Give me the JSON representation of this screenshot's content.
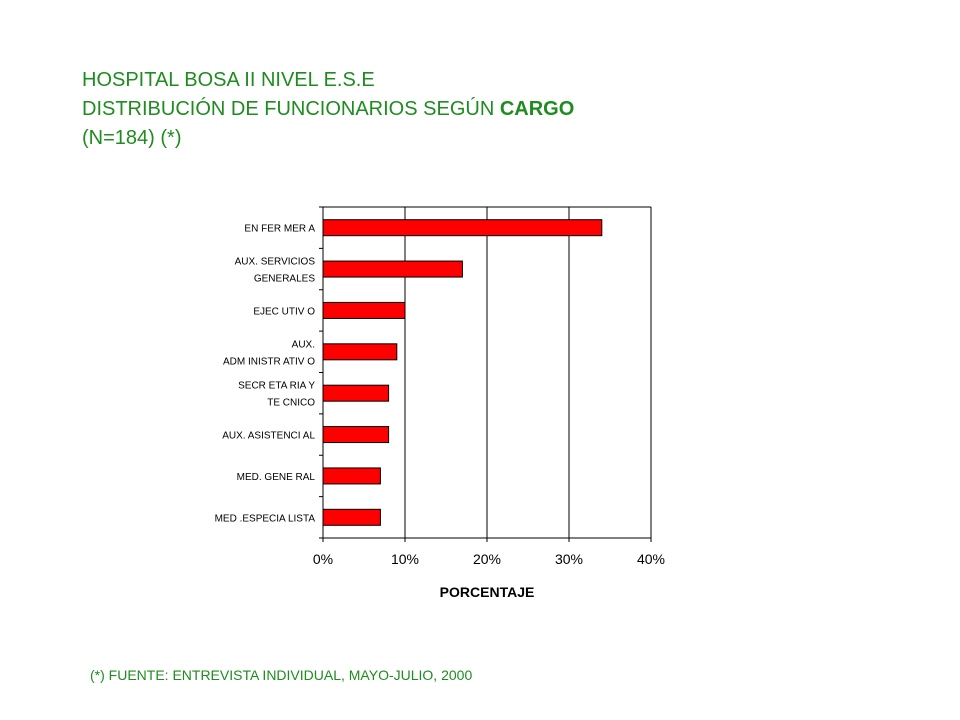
{
  "header": {
    "line1": "HOSPITAL BOSA II NIVEL E.S.E",
    "line2_prefix": "DISTRIBUCIÓN DE FUNCIONARIOS SEGÚN ",
    "line2_bold": "CARGO",
    "line3": "(N=184) (*)"
  },
  "footnote": "(*) FUENTE: ENTREVISTA INDIVIDUAL, MAYO-JULIO, 2000",
  "colors": {
    "title": "#1e8c1e",
    "bar": "#ff0000",
    "bar_border": "#000000"
  },
  "chart_data": {
    "type": "bar",
    "orientation": "horizontal",
    "categories": [
      [
        "EN FER MER A"
      ],
      [
        "AUX. SERVICIOS",
        "GENERALES"
      ],
      [
        "EJEC UTIV O"
      ],
      [
        "AUX.",
        "ADM INISTR ATIV O"
      ],
      [
        "SECR ETA RIA Y",
        "TE CNICO"
      ],
      [
        "AUX. ASISTENCI AL"
      ],
      [
        "MED. GENE RAL"
      ],
      [
        "MED .ESPECIA LISTA"
      ]
    ],
    "values": [
      34,
      17,
      10,
      9,
      8,
      8,
      7,
      7
    ],
    "xlim": [
      0,
      40
    ],
    "xticks": [
      "0%",
      "10%",
      "20%",
      "30%",
      "40%"
    ],
    "xlabel": "PORCENTAJE",
    "ylabel": "",
    "grid": "vertical",
    "legend": "none"
  }
}
